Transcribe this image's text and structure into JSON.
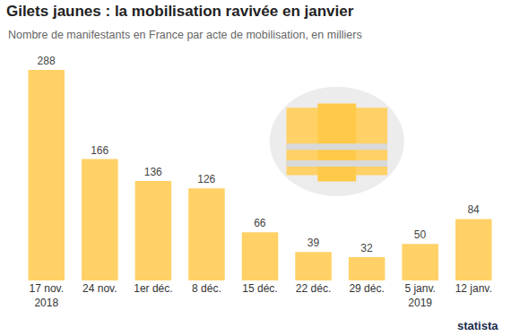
{
  "chart_data": {
    "type": "bar",
    "title": "Gilets jaunes : la mobilisation ravivée en janvier",
    "subtitle": "Nombre de manifestants en France par acte de mobilisation, en milliers",
    "categories": [
      "17 nov.\n2018",
      "24 nov.",
      "1er déc.",
      "8 déc.",
      "15 déc.",
      "22 déc.",
      "29 déc.",
      "5 janv.\n2019",
      "12 janv."
    ],
    "values": [
      288,
      166,
      136,
      126,
      66,
      39,
      32,
      50,
      84
    ],
    "color": "#ffd166",
    "ylim": [
      0,
      288
    ],
    "yticks": [],
    "grid": false,
    "data_labels": true,
    "tick_labels": "x",
    "source": "statista"
  }
}
